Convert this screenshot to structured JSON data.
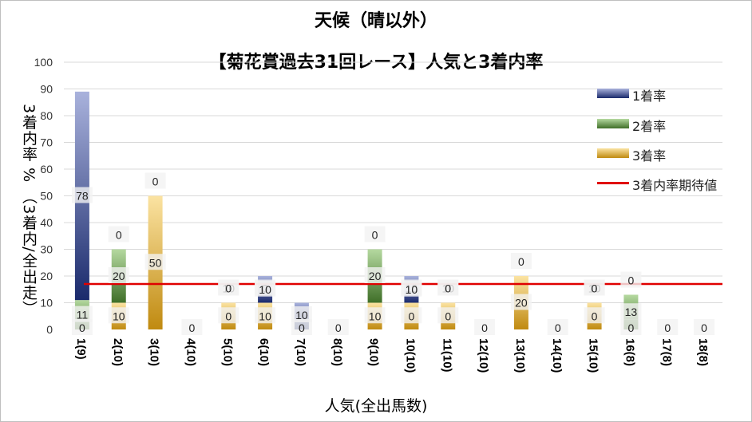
{
  "chart_data": {
    "type": "bar",
    "stacked": true,
    "title": "天候（晴以外）",
    "subtitle": "【菊花賞過去31回レース】人気と3着内率",
    "xlabel": "人気(全出馬数)",
    "ylabel": "3着内率 % （3着内/全出走）",
    "ylim": [
      0,
      100
    ],
    "yticks": [
      "0",
      "10",
      "20",
      "30",
      "40",
      "50",
      "60",
      "70",
      "80",
      "90",
      "100"
    ],
    "categories": [
      "1(9)",
      "2(10)",
      "3(10)",
      "4(10)",
      "5(10)",
      "6(10)",
      "7(10)",
      "8(10)",
      "9(10)",
      "10(10)",
      "11(10)",
      "12(10)",
      "13(10)",
      "14(10)",
      "15(10)",
      "16(8)",
      "17(8)",
      "18(8)"
    ],
    "series": [
      {
        "name": "1着率",
        "color_dark": "#1a2a6c",
        "color_light": "#a9b2dc",
        "values": [
          78,
          0,
          0,
          0,
          0,
          10,
          10,
          0,
          0,
          10,
          0,
          0,
          0,
          0,
          0,
          0,
          0,
          0
        ]
      },
      {
        "name": "2着率",
        "color_dark": "#3f6f28",
        "color_light": "#b5d9a0",
        "values": [
          11,
          20,
          0,
          0,
          0,
          0,
          0,
          0,
          20,
          0,
          0,
          0,
          0,
          0,
          0,
          13,
          0,
          0
        ]
      },
      {
        "name": "3着率",
        "color_dark": "#c08a10",
        "color_light": "#fbe3a2",
        "values": [
          0,
          10,
          50,
          0,
          10,
          10,
          0,
          0,
          10,
          10,
          10,
          0,
          20,
          0,
          10,
          0,
          0,
          0
        ]
      }
    ],
    "labels": [
      [
        "0",
        "11",
        "78"
      ],
      [
        "10",
        "20",
        "0"
      ],
      [
        "50",
        "0"
      ],
      [
        "0"
      ],
      [
        "0",
        "10",
        "0"
      ],
      [
        "10",
        "0",
        "10"
      ],
      [
        "0",
        "10"
      ],
      [
        "0"
      ],
      [
        "10",
        "20",
        "0"
      ],
      [
        "0",
        "10",
        "10"
      ],
      [
        "0",
        "10",
        "0"
      ],
      [
        "0"
      ],
      [
        "20",
        "0"
      ],
      [
        "0"
      ],
      [
        "0",
        "10",
        "0"
      ],
      [
        "0",
        "13",
        "0"
      ],
      [
        "0"
      ],
      [
        "0"
      ]
    ],
    "expected_line": {
      "name": "3着内率期待値",
      "value": 17,
      "color": "#e00000"
    },
    "legend_position": "right",
    "grid": true
  }
}
